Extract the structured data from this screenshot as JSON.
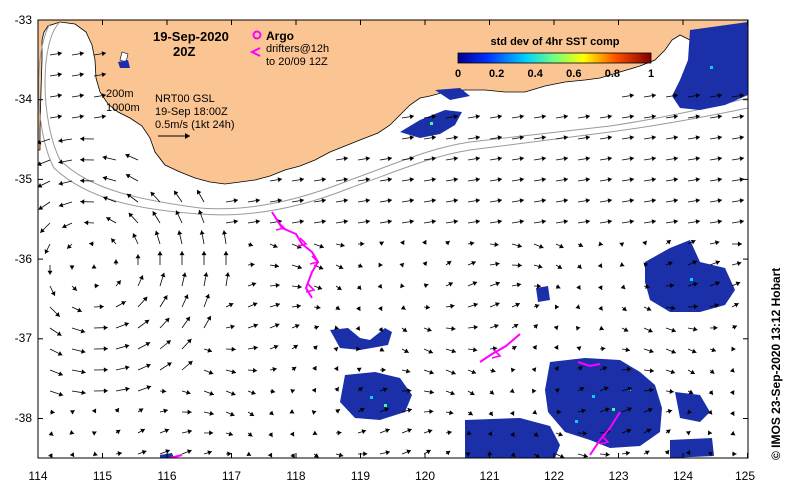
{
  "map": {
    "date_label": "19-Sep-2020",
    "time_label": "20Z",
    "argo_label": "Argo",
    "drifters_label": "drifters@12h",
    "drifters_window": "to 20/09 12Z",
    "isobath_200": "200m",
    "isobath_1000": "1000m",
    "product_label": "NRT00 GSL",
    "product_time": "19-Sep 18:00Z",
    "scale_arrow_label": "0.5m/s (1kt 24h)",
    "colorbar_title": "std dev of 4hr SST comp",
    "colorbar_ticks": [
      "0",
      "0.2",
      "0.4",
      "0.6",
      "0.8",
      "1"
    ],
    "credit": "© IMOS 23-Sep-2020 13:12 Hobart",
    "lon_ticks": [
      "114",
      "115",
      "116",
      "117",
      "118",
      "119",
      "120",
      "121",
      "122",
      "123",
      "124",
      "125"
    ],
    "lat_ticks": [
      "-33",
      "-34",
      "-35",
      "-36",
      "-37",
      "-38"
    ],
    "colors": {
      "land": "#fbc593",
      "ocean": "#ffffff",
      "arrows": "#000000",
      "drifters": "#ff00ff",
      "sst_blue": "#1a2fa8",
      "isobath": "#9a9a9a"
    }
  }
}
